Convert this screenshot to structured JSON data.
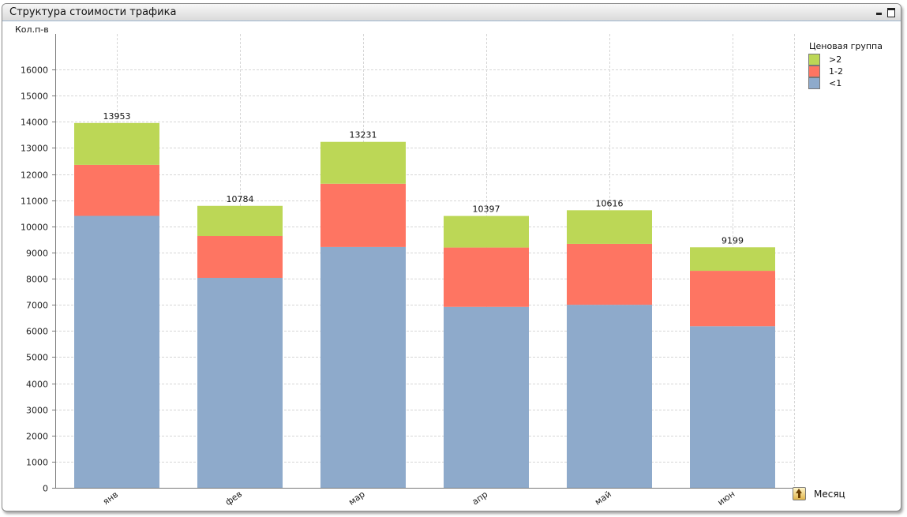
{
  "window": {
    "title": "Структура стоимости трафика"
  },
  "dimension_button": {
    "label": "Месяц",
    "icon": "cycle-up-arrow-icon"
  },
  "colors": {
    "gt2": "#bcd756",
    "one_two": "#fe7562",
    "lt1": "#8eaacb",
    "grid": "#d6d6d6"
  },
  "chart_data": {
    "type": "bar",
    "stacked": true,
    "ylabel": "Кол.п-в",
    "xlabel": "",
    "ylim": [
      0,
      16000
    ],
    "yticks": [
      0,
      1000,
      2000,
      3000,
      4000,
      5000,
      6000,
      7000,
      8000,
      9000,
      10000,
      11000,
      12000,
      13000,
      14000,
      15000,
      16000
    ],
    "grid": true,
    "legend_title": "Ценовая группа",
    "legend_placement": "top-right",
    "legend_order": [
      ">2",
      "1-2",
      "<1"
    ],
    "categories": [
      "янв",
      "фев",
      "мар",
      "апр",
      "май",
      "июн"
    ],
    "series": [
      {
        "name": "<1",
        "values": [
          10400,
          8030,
          9210,
          6920,
          7000,
          6180
        ]
      },
      {
        "name": "1-2",
        "values": [
          1950,
          1600,
          2420,
          2270,
          2330,
          2120
        ]
      },
      {
        "name": ">2",
        "values": [
          1603,
          1154,
          1601,
          1207,
          1286,
          899
        ]
      }
    ],
    "totals": [
      13953,
      10784,
      13231,
      10397,
      10616,
      9199
    ]
  }
}
